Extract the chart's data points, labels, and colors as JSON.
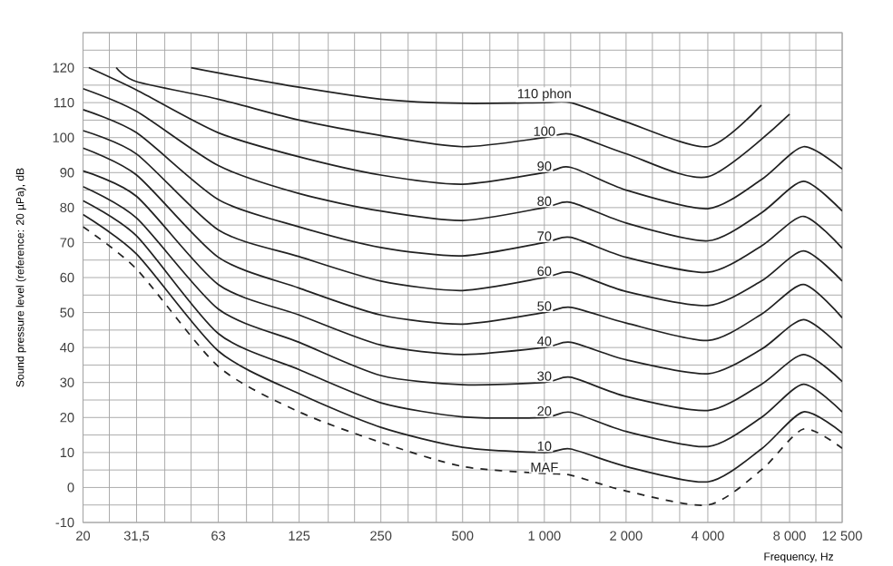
{
  "chart_data": {
    "type": "line",
    "xlabel": "Frequency, Hz",
    "ylabel": "Sound pressure level (reference: 20 µPa), dB",
    "log": "x",
    "grid": true,
    "xlim": [
      20,
      12500
    ],
    "ylim": [
      -10,
      130
    ],
    "xticks": [
      20,
      {
        "value": 25,
        "label": null
      },
      {
        "value": 31.5,
        "label": "31,5"
      },
      {
        "value": 40,
        "label": null
      },
      {
        "value": 50,
        "label": null
      },
      63,
      {
        "value": 80,
        "label": null
      },
      {
        "value": 100,
        "label": null
      },
      125,
      {
        "value": 160,
        "label": null
      },
      {
        "value": 200,
        "label": null
      },
      250,
      {
        "value": 315,
        "label": null
      },
      {
        "value": 400,
        "label": null
      },
      500,
      {
        "value": 630,
        "label": null
      },
      {
        "value": 800,
        "label": null
      },
      {
        "value": 1000,
        "label": "1 000"
      },
      {
        "value": 1250,
        "label": null
      },
      {
        "value": 1600,
        "label": null
      },
      {
        "value": 2000,
        "label": "2 000"
      },
      {
        "value": 2500,
        "label": null
      },
      {
        "value": 3150,
        "label": null
      },
      {
        "value": 4000,
        "label": "4 000"
      },
      {
        "value": 5000,
        "label": null
      },
      {
        "value": 6300,
        "label": null
      },
      {
        "value": 8000,
        "label": "8 000"
      },
      {
        "value": 10000,
        "label": null
      },
      {
        "value": 12500,
        "label": "12 500"
      }
    ],
    "yticks": [
      -10,
      {
        "value": -5,
        "label": null
      },
      0,
      {
        "value": 5,
        "label": null
      },
      10,
      {
        "value": 15,
        "label": null
      },
      20,
      {
        "value": 25,
        "label": null
      },
      30,
      {
        "value": 35,
        "label": null
      },
      40,
      {
        "value": 45,
        "label": null
      },
      50,
      {
        "value": 55,
        "label": null
      },
      60,
      {
        "value": 65,
        "label": null
      },
      70,
      {
        "value": 75,
        "label": null
      },
      80,
      {
        "value": 85,
        "label": null
      },
      90,
      {
        "value": 95,
        "label": null
      },
      100,
      {
        "value": 105,
        "label": null
      },
      110,
      {
        "value": 115,
        "label": null
      },
      120,
      {
        "value": 125,
        "label": null
      },
      {
        "value": 130,
        "label": null
      }
    ],
    "series": [
      {
        "name": "110 phon",
        "color": "#222222",
        "line_style": "solid",
        "x": [
          50,
          63,
          125,
          250,
          500,
          1000,
          1250,
          2000,
          4000,
          6300
        ],
        "values": [
          120,
          118.5,
          114.4,
          111,
          109.8,
          110,
          110,
          104.5,
          97.4,
          109.3
        ]
      },
      {
        "name": "100",
        "color": "#222222",
        "line_style": "solid",
        "x": [
          26.5,
          31.5,
          63,
          125,
          250,
          500,
          1000,
          1250,
          2000,
          4000,
          8000
        ],
        "values": [
          120,
          116,
          111,
          105,
          100.6,
          97.4,
          100,
          101,
          95.4,
          88.8,
          106.7
        ]
      },
      {
        "name": "90",
        "color": "#222222",
        "line_style": "solid",
        "x": [
          21,
          31.5,
          63,
          125,
          250,
          500,
          1000,
          1250,
          2000,
          4000,
          6300,
          9000,
          12500
        ],
        "values": [
          120,
          113.6,
          101.4,
          94.5,
          89.3,
          86.7,
          90,
          91.5,
          85,
          79.7,
          88,
          97.4,
          91
        ]
      },
      {
        "name": "80",
        "color": "#222222",
        "line_style": "solid",
        "x": [
          20,
          31.5,
          63,
          125,
          250,
          500,
          1000,
          1250,
          2000,
          4000,
          6300,
          9000,
          12500
        ],
        "values": [
          114,
          107.5,
          92,
          84,
          79,
          76.3,
          80,
          81.5,
          75.6,
          70.5,
          78.5,
          87.5,
          79
        ]
      },
      {
        "name": "70",
        "color": "#222222",
        "line_style": "solid",
        "x": [
          20,
          31.5,
          63,
          125,
          250,
          500,
          1000,
          1250,
          2000,
          4000,
          6300,
          9000,
          12500
        ],
        "values": [
          108,
          101.4,
          82.3,
          74.5,
          68.6,
          66.2,
          70,
          71.5,
          65.8,
          61.5,
          69,
          77.5,
          68.4
        ]
      },
      {
        "name": "60",
        "color": "#222222",
        "line_style": "solid",
        "x": [
          20,
          31.5,
          63,
          125,
          250,
          500,
          1000,
          1250,
          2000,
          4000,
          6300,
          9000,
          12500
        ],
        "values": [
          102,
          95.3,
          73.6,
          66,
          59,
          56.3,
          60,
          61.5,
          56,
          52,
          59,
          67.6,
          59
        ]
      },
      {
        "name": "50",
        "color": "#222222",
        "line_style": "solid",
        "x": [
          20,
          31.5,
          63,
          125,
          250,
          500,
          1000,
          1250,
          2000,
          4000,
          6300,
          9000,
          12500
        ],
        "values": [
          97,
          89.3,
          65.8,
          57,
          49.3,
          46.7,
          50,
          51.5,
          47,
          42,
          49.5,
          58,
          48.5
        ]
      },
      {
        "name": "40",
        "color": "#222222",
        "line_style": "solid",
        "x": [
          20,
          31.5,
          63,
          125,
          250,
          500,
          1000,
          1250,
          2000,
          4000,
          6300,
          9000,
          12500
        ],
        "values": [
          90.5,
          83.2,
          58,
          49.3,
          40.7,
          38,
          40,
          41.5,
          36.5,
          32.5,
          39.5,
          48,
          39.8
        ]
      },
      {
        "name": "30",
        "color": "#222222",
        "line_style": "solid",
        "x": [
          20,
          31.5,
          63,
          125,
          250,
          500,
          1000,
          1250,
          2000,
          4000,
          6300,
          9000,
          12500
        ],
        "values": [
          86,
          77,
          51,
          41.5,
          32,
          29.4,
          30,
          31.5,
          26,
          22,
          29.5,
          38,
          30.3
        ]
      },
      {
        "name": "20",
        "color": "#222222",
        "line_style": "solid",
        "x": [
          20,
          31.5,
          63,
          125,
          250,
          500,
          1000,
          1250,
          2000,
          4000,
          6300,
          9000,
          12500
        ],
        "values": [
          82,
          71.9,
          44,
          33.7,
          24.2,
          20.2,
          20,
          21.5,
          16,
          11.7,
          20,
          29.5,
          21.6
        ]
      },
      {
        "name": "10",
        "color": "#222222",
        "line_style": "solid",
        "x": [
          20,
          31.5,
          63,
          125,
          250,
          500,
          1000,
          1250,
          2000,
          4000,
          6300,
          9000,
          12500
        ],
        "values": [
          78,
          66.7,
          39,
          26.8,
          17.2,
          11.5,
          10,
          11,
          6,
          1.6,
          11,
          21.6,
          15.6
        ]
      },
      {
        "name": "MAF",
        "color": "#222222",
        "line_style": "dashed",
        "x": [
          20,
          31.5,
          63,
          125,
          250,
          500,
          1000,
          1250,
          2000,
          4000,
          6300,
          9000,
          12500
        ],
        "values": [
          74.5,
          62.4,
          34.6,
          21.6,
          12.9,
          6,
          4,
          3.5,
          -1,
          -5,
          5,
          16.7,
          11.2
        ]
      }
    ]
  }
}
